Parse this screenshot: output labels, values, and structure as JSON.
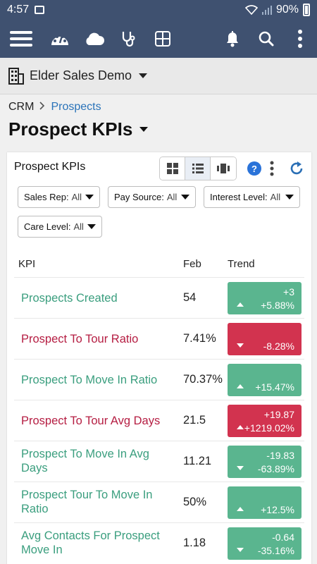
{
  "status_bar": {
    "time": "4:57",
    "battery": "90%"
  },
  "app_bar": {
    "icons": [
      "menu-icon",
      "dashboard-icon",
      "cloud-icon",
      "stethoscope-icon",
      "grid-icon",
      "bell-icon",
      "search-icon",
      "more-vert-icon"
    ]
  },
  "building": {
    "name": "Elder Sales Demo"
  },
  "breadcrumb": {
    "root": "CRM",
    "current": "Prospects"
  },
  "page_title": "Prospect KPIs",
  "card": {
    "title": "Prospect KPIs",
    "help_label": "?",
    "filters": [
      {
        "label": "Sales Rep:",
        "value": "All"
      },
      {
        "label": "Pay Source:",
        "value": "All"
      },
      {
        "label": "Interest Level:",
        "value": "All"
      },
      {
        "label": "Care Level:",
        "value": "All"
      }
    ],
    "table": {
      "headers": {
        "kpi": "KPI",
        "month": "Feb",
        "trend": "Trend"
      },
      "rows": [
        {
          "kpi": "Prospects Created",
          "value": "54",
          "trend_delta": "+3",
          "trend_pct": "+5.88%",
          "direction": "up",
          "status": "positive"
        },
        {
          "kpi": "Prospect To Tour Ratio",
          "value": "7.41%",
          "trend_delta": "",
          "trend_pct": "-8.28%",
          "direction": "down",
          "status": "negative"
        },
        {
          "kpi": "Prospect To Move In Ratio",
          "value": "70.37%",
          "trend_delta": "",
          "trend_pct": "+15.47%",
          "direction": "up",
          "status": "positive"
        },
        {
          "kpi": "Prospect To Tour Avg Days",
          "value": "21.5",
          "trend_delta": "+19.87",
          "trend_pct": "+1219.02%",
          "direction": "up",
          "status": "negative"
        },
        {
          "kpi": "Prospect To Move In Avg Days",
          "value": "11.21",
          "trend_delta": "-19.83",
          "trend_pct": "-63.89%",
          "direction": "down",
          "status": "positive"
        },
        {
          "kpi": "Prospect Tour To Move In Ratio",
          "value": "50%",
          "trend_delta": "",
          "trend_pct": "+12.5%",
          "direction": "up",
          "status": "positive"
        },
        {
          "kpi": "Avg Contacts For Prospect Move In",
          "value": "1.18",
          "trend_delta": "-0.64",
          "trend_pct": "-35.16%",
          "direction": "down",
          "status": "positive"
        }
      ]
    }
  },
  "colors": {
    "header_bg": "#3f5170",
    "positive_text": "#3a9e7e",
    "negative_text": "#b51d42",
    "positive_bg": "#5ab58f",
    "negative_bg": "#d2334f",
    "link": "#2a73b9"
  }
}
